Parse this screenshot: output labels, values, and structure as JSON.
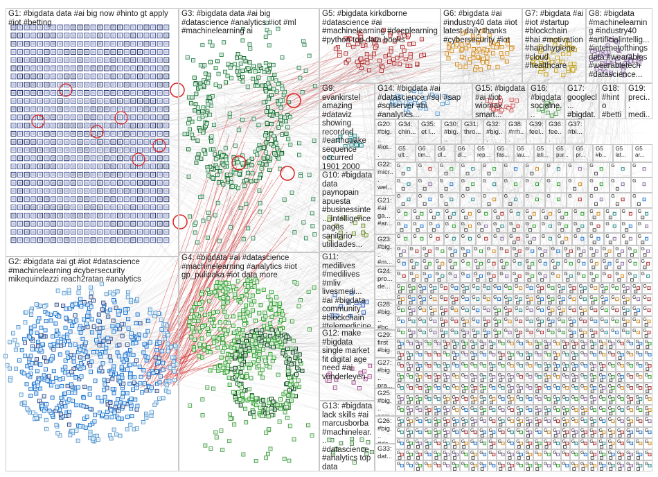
{
  "groups": [
    {
      "id": "G1",
      "label": "G1: #bigdata data #ai big now #hinto gt apply #iot #betting",
      "color": "#1f3f8f"
    },
    {
      "id": "G2",
      "label": "G2: #bigdata #ai gt #iot #datascience #machinelearning #cybersecurity mikequindazzi reach2ratan #analytics",
      "color": "#1f77d0"
    },
    {
      "id": "G3",
      "label": "G3: #bigdata data #ai big #datascience #analytics #iot #ml #machinelearning ai",
      "color": "#0f6a2a"
    },
    {
      "id": "G4",
      "label": "G4: #bigdata #ai #datascience #machinelearning #analytics #iot gp_pulipaka #iot data more",
      "color": "#2ca02c"
    },
    {
      "id": "G5",
      "label": "G5: #bigdata kirkdborne #datascience #ai #machinelearning #deeplearning #python top data books",
      "color": "#b03030"
    },
    {
      "id": "G6",
      "label": "G6: #bigdata #ai #industry40 data #iot latest daily thanks #cybersecurity #iot",
      "color": "#d08a20"
    },
    {
      "id": "G7",
      "label": "G7: #bigdata #ai #iot #startup #blockchain #hai #motivation #handhygiene #cloud #healthcare",
      "color": "#c0a020"
    },
    {
      "id": "G8",
      "label": "G8: #bigdata #machinelearning #industry40 #artificialintellig... #internetofthings data #wearables #wearabletech #datascience...",
      "color": "#8a6aa0"
    },
    {
      "id": "G9",
      "label": "G9: evankirstel amazing #dataviz showing recorded #earthquake sequence occurred 1901 2000",
      "color": "#2a8a8a"
    },
    {
      "id": "G10",
      "label": "G10: #bigdata data paynopain apuesta #businessinte... intelligence pagos sanitario utilidades...",
      "color": "#6a8a2a"
    },
    {
      "id": "G11",
      "label": "G11: medilives #medilives #mliv livesmedi... #ai #bigdata community #blockchain #telemedicine hello",
      "color": "#3a6ac0"
    },
    {
      "id": "G12",
      "label": "G12: make #bigdata single market fit digital age need #ai vonderleyen",
      "color": "#a04a8a"
    },
    {
      "id": "G13",
      "label": "G13: #bigdata lack skills #ai marcusborba #machinelear... #datascience #analytics top data",
      "color": "#4a8a4a"
    },
    {
      "id": "G14",
      "label": "G14: #bigdata #ai #datascience #sql #sap #sqlserver #bi #analytics...",
      "color": "#5a9ad0"
    },
    {
      "id": "G15",
      "label": "G15: #bigdata #ai #iot wiomax smart...",
      "color": "#d05a5a"
    },
    {
      "id": "G16",
      "label": "G16: #bigdata socialne...",
      "color": "#5aa05a"
    },
    {
      "id": "G17",
      "label": "G17: googlecl... #bigdat...",
      "color": "#a07a3a"
    },
    {
      "id": "G18",
      "label": "G18: #hinto #betti...",
      "color": "#3a3aa0"
    },
    {
      "id": "G19",
      "label": "G19: preci... medi...",
      "color": "#8a3a3a"
    },
    {
      "id": "G20",
      "label": "G20: #big... #iot... #ai...",
      "color": "#2a6a6a"
    },
    {
      "id": "G21",
      "label": "G21: #ai ga... #ar...",
      "color": "#6a2a8a"
    },
    {
      "id": "G22",
      "label": "G22: micr... wel...",
      "color": "#8a8a2a"
    },
    {
      "id": "G23",
      "label": "G23: #big... #m...",
      "color": "#2a8a5a"
    },
    {
      "id": "G24",
      "label": "G24: pro... de...",
      "color": "#5a2a2a"
    },
    {
      "id": "G25",
      "label": "G25: #big... sem...",
      "color": "#2a5a8a"
    },
    {
      "id": "G26",
      "label": "G26: #big... #da...",
      "color": "#8a5a2a"
    },
    {
      "id": "G27",
      "label": "G27: #big... pra...",
      "color": "#5a8a8a"
    },
    {
      "id": "G28",
      "label": "G28: #big... #bc...",
      "color": "#8a2a5a"
    },
    {
      "id": "G29",
      "label": "G29: first #big...",
      "color": "#2a2a8a"
    },
    {
      "id": "G30",
      "label": "G30: #big...",
      "color": "#6a6a2a"
    },
    {
      "id": "G31",
      "label": "G31: thro...",
      "color": "#2a6a2a"
    },
    {
      "id": "G32",
      "label": "G32: #big...",
      "color": "#6a2a2a"
    },
    {
      "id": "G33",
      "label": "G33: dat...",
      "color": "#2a2a6a"
    },
    {
      "id": "G34",
      "label": "G34: chin...",
      "color": "#5a5a8a"
    },
    {
      "id": "G35",
      "label": "G35: et l...",
      "color": "#8a5a5a"
    },
    {
      "id": "G36",
      "label": "G36: fee...",
      "color": "#5a8a5a"
    },
    {
      "id": "G37",
      "label": "G37: #bi...",
      "color": "#8a8a5a"
    },
    {
      "id": "G38",
      "label": "G38: #rrh...",
      "color": "#5a5a5a"
    },
    {
      "id": "G39",
      "label": "G39: feel...",
      "color": "#3a7a7a"
    }
  ],
  "small_rows": [
    [
      "G5",
      "G6",
      "G6",
      "G6",
      "G5",
      "G5",
      "G5",
      "G5",
      "G5",
      "G5",
      "G5",
      "G5",
      "G5"
    ],
    [
      "ult...",
      "tim...",
      "dl...",
      "di...",
      "rep...",
      "fas...",
      "lau...",
      "lati...",
      "pur...",
      "pr...",
      "#b...",
      "lat...",
      "ar..."
    ]
  ],
  "tiny_label": "G"
}
